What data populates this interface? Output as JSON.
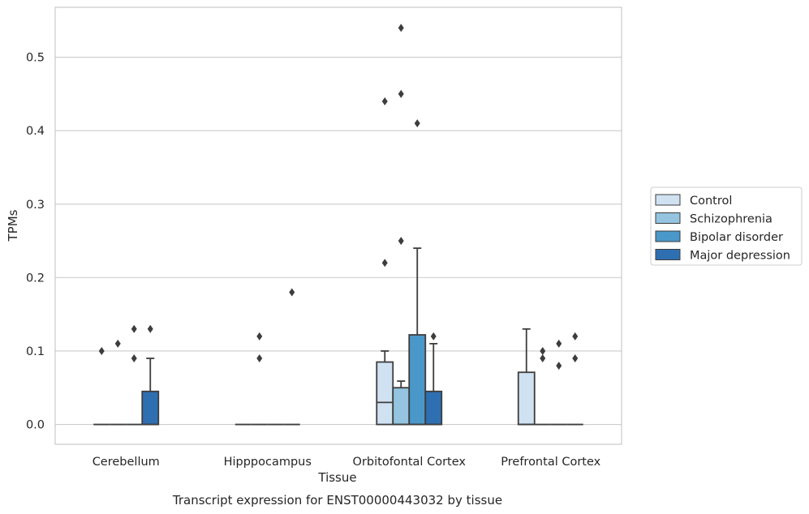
{
  "chart_data": {
    "type": "box",
    "title": "",
    "caption": "Transcript expression for ENST00000443032 by tissue",
    "xlabel": "Tissue",
    "ylabel": "TPMs",
    "ylim": [
      -0.027,
      0.568
    ],
    "yticks": [
      0.0,
      0.1,
      0.2,
      0.3,
      0.4,
      0.5
    ],
    "ytick_labels": [
      "0.0",
      "0.1",
      "0.2",
      "0.3",
      "0.4",
      "0.5"
    ],
    "grid": "horizontal",
    "legend_position": "right",
    "categories": [
      "Cerebellum",
      "Hipppocampus",
      "Orbitofontal Cortex",
      "Prefrontal Cortex"
    ],
    "series": [
      {
        "name": "Control",
        "color": "#d0e1f2",
        "boxes": [
          {
            "q1": 0,
            "median": 0,
            "q3": 0,
            "whislo": 0,
            "whishi": 0,
            "fliers": [
              0.1
            ]
          },
          {
            "q1": 0,
            "median": 0,
            "q3": 0,
            "whislo": 0,
            "whishi": 0,
            "fliers": []
          },
          {
            "q1": 0,
            "median": 0.03,
            "q3": 0.085,
            "whislo": 0,
            "whishi": 0.1,
            "fliers": [
              0.22,
              0.44
            ]
          },
          {
            "q1": 0,
            "median": 0,
            "q3": 0.071,
            "whislo": 0,
            "whishi": 0.13,
            "fliers": []
          }
        ]
      },
      {
        "name": "Schizophrenia",
        "color": "#94c4df",
        "boxes": [
          {
            "q1": 0,
            "median": 0,
            "q3": 0,
            "whislo": 0,
            "whishi": 0,
            "fliers": [
              0.11
            ]
          },
          {
            "q1": 0,
            "median": 0,
            "q3": 0,
            "whislo": 0,
            "whishi": 0,
            "fliers": [
              0.12,
              0.09
            ]
          },
          {
            "q1": 0,
            "median": 0,
            "q3": 0.05,
            "whislo": 0,
            "whishi": 0.059,
            "fliers": [
              0.54,
              0.45,
              0.25
            ]
          },
          {
            "q1": 0,
            "median": 0,
            "q3": 0,
            "whislo": 0,
            "whishi": 0,
            "fliers": [
              0.1,
              0.09
            ]
          }
        ]
      },
      {
        "name": "Bipolar disorder",
        "color": "#4a98c9",
        "boxes": [
          {
            "q1": 0,
            "median": 0,
            "q3": 0,
            "whislo": 0,
            "whishi": 0,
            "fliers": [
              0.13,
              0.09
            ]
          },
          {
            "q1": 0,
            "median": 0,
            "q3": 0,
            "whislo": 0,
            "whishi": 0,
            "fliers": []
          },
          {
            "q1": 0,
            "median": 0,
            "q3": 0.122,
            "whislo": 0,
            "whishi": 0.24,
            "fliers": [
              0.41
            ]
          },
          {
            "q1": 0,
            "median": 0,
            "q3": 0,
            "whislo": 0,
            "whishi": 0,
            "fliers": [
              0.11,
              0.08
            ]
          }
        ]
      },
      {
        "name": "Major depression",
        "color": "#2e6fb2",
        "boxes": [
          {
            "q1": 0,
            "median": 0,
            "q3": 0.045,
            "whislo": 0,
            "whishi": 0.09,
            "fliers": [
              0.13
            ]
          },
          {
            "q1": 0,
            "median": 0,
            "q3": 0,
            "whislo": 0,
            "whishi": 0,
            "fliers": [
              0.18
            ]
          },
          {
            "q1": 0,
            "median": 0,
            "q3": 0.045,
            "whislo": 0,
            "whishi": 0.11,
            "fliers": [
              0.12
            ]
          },
          {
            "q1": 0,
            "median": 0,
            "q3": 0,
            "whislo": 0,
            "whishi": 0,
            "fliers": [
              0.12,
              0.09
            ]
          }
        ]
      }
    ]
  }
}
